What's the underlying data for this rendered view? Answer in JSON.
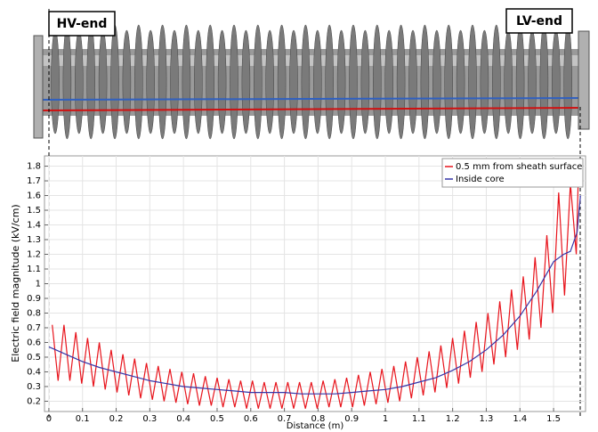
{
  "chart_data": {
    "type": "line",
    "labels": {
      "left": "HV-end",
      "right": "LV-end"
    },
    "xlabel": "Distance (m)",
    "ylabel": "Electric field magnitude (kV/cm)",
    "xlim": [
      -0.013,
      1.595
    ],
    "ylim": [
      0.13,
      1.87
    ],
    "xticks": [
      0,
      0.1,
      0.2,
      0.3,
      0.4,
      0.5,
      0.6,
      0.7,
      0.8,
      0.9,
      1,
      1.1,
      1.2,
      1.3,
      1.4,
      1.5
    ],
    "yticks": [
      0.2,
      0.3,
      0.4,
      0.5,
      0.6,
      0.7,
      0.8,
      0.9,
      1,
      1.1,
      1.2,
      1.3,
      1.4,
      1.5,
      1.6,
      1.7,
      1.8
    ],
    "grid": true,
    "legend": "upper right",
    "series": [
      {
        "name": "0.5 mm from sheath surface",
        "color": "#e8141c",
        "x": [
          0.01,
          0.0275,
          0.045,
          0.0625,
          0.08,
          0.0975,
          0.115,
          0.1325,
          0.15,
          0.1675,
          0.185,
          0.2025,
          0.22,
          0.2375,
          0.255,
          0.2725,
          0.29,
          0.3075,
          0.325,
          0.3425,
          0.36,
          0.3775,
          0.395,
          0.4125,
          0.43,
          0.4475,
          0.465,
          0.4825,
          0.5,
          0.5175,
          0.535,
          0.5525,
          0.57,
          0.5875,
          0.605,
          0.6225,
          0.64,
          0.6575,
          0.675,
          0.6925,
          0.71,
          0.7275,
          0.745,
          0.7625,
          0.78,
          0.7975,
          0.815,
          0.8325,
          0.85,
          0.8675,
          0.885,
          0.9025,
          0.92,
          0.9375,
          0.955,
          0.9725,
          0.99,
          1.0075,
          1.025,
          1.0425,
          1.06,
          1.0775,
          1.095,
          1.1125,
          1.13,
          1.1475,
          1.165,
          1.1825,
          1.2,
          1.2175,
          1.235,
          1.2525,
          1.27,
          1.2875,
          1.305,
          1.3225,
          1.34,
          1.3575,
          1.375,
          1.3925,
          1.41,
          1.4275,
          1.445,
          1.4625,
          1.48,
          1.4975,
          1.515,
          1.5325,
          1.55,
          1.5675,
          1.575
        ],
        "values": [
          0.72,
          0.34,
          0.72,
          0.34,
          0.67,
          0.32,
          0.63,
          0.3,
          0.6,
          0.28,
          0.55,
          0.26,
          0.52,
          0.24,
          0.49,
          0.22,
          0.46,
          0.21,
          0.44,
          0.2,
          0.42,
          0.19,
          0.4,
          0.18,
          0.39,
          0.17,
          0.37,
          0.17,
          0.36,
          0.16,
          0.35,
          0.16,
          0.34,
          0.15,
          0.34,
          0.15,
          0.33,
          0.15,
          0.33,
          0.15,
          0.33,
          0.15,
          0.33,
          0.15,
          0.33,
          0.15,
          0.34,
          0.16,
          0.35,
          0.16,
          0.36,
          0.16,
          0.38,
          0.17,
          0.4,
          0.18,
          0.42,
          0.19,
          0.44,
          0.2,
          0.47,
          0.22,
          0.5,
          0.24,
          0.54,
          0.26,
          0.58,
          0.29,
          0.63,
          0.32,
          0.68,
          0.36,
          0.74,
          0.4,
          0.8,
          0.45,
          0.88,
          0.5,
          0.96,
          0.55,
          1.05,
          0.62,
          1.18,
          0.7,
          1.33,
          0.8,
          1.62,
          0.92,
          1.68,
          1.2,
          1.85
        ]
      },
      {
        "name": "Inside core",
        "color": "#3535a8",
        "x": [
          0,
          0.02,
          0.05,
          0.1,
          0.15,
          0.2,
          0.25,
          0.3,
          0.35,
          0.4,
          0.45,
          0.5,
          0.55,
          0.6,
          0.65,
          0.7,
          0.75,
          0.8,
          0.85,
          0.9,
          0.95,
          1.0,
          1.05,
          1.1,
          1.15,
          1.2,
          1.25,
          1.3,
          1.35,
          1.4,
          1.45,
          1.5,
          1.53,
          1.55,
          1.57,
          1.58
        ],
        "values": [
          0.57,
          0.55,
          0.52,
          0.47,
          0.43,
          0.4,
          0.37,
          0.34,
          0.32,
          0.3,
          0.29,
          0.28,
          0.27,
          0.26,
          0.26,
          0.26,
          0.25,
          0.25,
          0.25,
          0.26,
          0.27,
          0.28,
          0.3,
          0.33,
          0.36,
          0.41,
          0.47,
          0.55,
          0.65,
          0.78,
          0.95,
          1.15,
          1.2,
          1.22,
          1.35,
          1.6
        ]
      }
    ]
  }
}
